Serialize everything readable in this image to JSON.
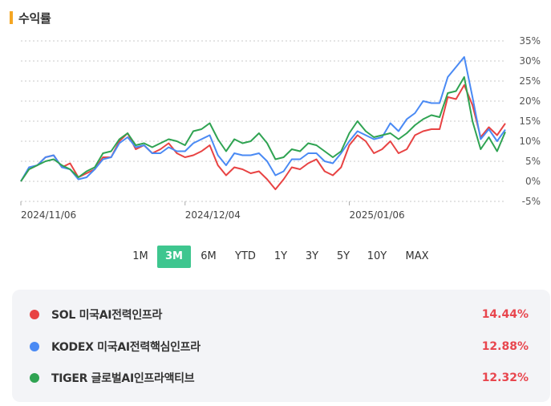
{
  "header": {
    "title": "수익률"
  },
  "periods": [
    "1M",
    "3M",
    "6M",
    "YTD",
    "1Y",
    "3Y",
    "5Y",
    "10Y",
    "MAX"
  ],
  "active_period": "3M",
  "chart_data": {
    "type": "line",
    "ylim": [
      -5,
      35
    ],
    "yticks": [
      "35%",
      "30%",
      "25%",
      "20%",
      "15%",
      "10%",
      "5%",
      "0%",
      "-5%"
    ],
    "x_tick_labels": [
      {
        "label": "2024/11/06",
        "index": 0
      },
      {
        "label": "2024/12/04",
        "index": 20
      },
      {
        "label": "2025/01/06",
        "index": 40
      }
    ],
    "grid": true,
    "series": [
      {
        "name": "SOL 미국AI전력인프라",
        "color": "#e84343",
        "values": [
          0,
          3,
          4,
          6,
          6.5,
          3.5,
          4.5,
          1,
          2,
          3,
          6,
          6,
          10,
          12,
          8,
          9,
          7,
          8,
          9.5,
          7,
          6,
          6.5,
          7.5,
          9,
          4,
          1.5,
          3.5,
          3,
          2,
          2.5,
          0.5,
          -2,
          0.5,
          3.5,
          3,
          4.5,
          5.5,
          2.5,
          1.5,
          3.5,
          9,
          11.5,
          10,
          7,
          8,
          10,
          7,
          8,
          11.5,
          12.5,
          13,
          13,
          21,
          20.5,
          24,
          19,
          11,
          13.5,
          11.5,
          14.44
        ]
      },
      {
        "name": "KODEX 미국AI전력핵심인프라",
        "color": "#4a8af4",
        "values": [
          0,
          3.5,
          4,
          6,
          6.5,
          3.5,
          3,
          0.5,
          1,
          3,
          5.5,
          6,
          9.5,
          11,
          8.5,
          9,
          7,
          7,
          8.5,
          7.5,
          7.5,
          9.5,
          10.5,
          11.5,
          6.5,
          4,
          7,
          6.5,
          6.5,
          7,
          5,
          1.5,
          2.5,
          5.5,
          5.5,
          7,
          7,
          5,
          4.5,
          7,
          10,
          12.5,
          11.5,
          10.5,
          11,
          14.5,
          12.5,
          15.5,
          17,
          20,
          19.5,
          19.5,
          26,
          28.5,
          31,
          21,
          10.5,
          13,
          10,
          12.88
        ]
      },
      {
        "name": "TIGER 글로벌AI인프라액티브",
        "color": "#2fa352",
        "values": [
          0,
          3,
          4,
          5,
          5.5,
          4,
          3,
          1,
          2.5,
          3.5,
          7,
          7.5,
          10.5,
          12,
          9,
          9.5,
          8.5,
          9.5,
          10.5,
          10,
          9,
          12.5,
          13,
          14.5,
          10.5,
          7.5,
          10.5,
          9.5,
          10,
          12,
          9.5,
          5.5,
          6,
          8,
          7.5,
          9.5,
          9,
          7.5,
          6,
          7.5,
          12,
          15,
          12.5,
          11,
          11.5,
          12,
          10.5,
          12,
          14,
          15.5,
          16.5,
          16,
          22,
          22.5,
          26,
          15,
          8,
          11,
          7.5,
          12.32
        ]
      }
    ]
  },
  "legend": [
    {
      "name": "SOL 미국AI전력인프라",
      "value": "14.44%",
      "color": "#e84343"
    },
    {
      "name": "KODEX 미국AI전력핵심인프라",
      "value": "12.88%",
      "color": "#4a8af4"
    },
    {
      "name": "TIGER 글로벌AI인프라액티브",
      "value": "12.32%",
      "color": "#2fa352"
    }
  ]
}
